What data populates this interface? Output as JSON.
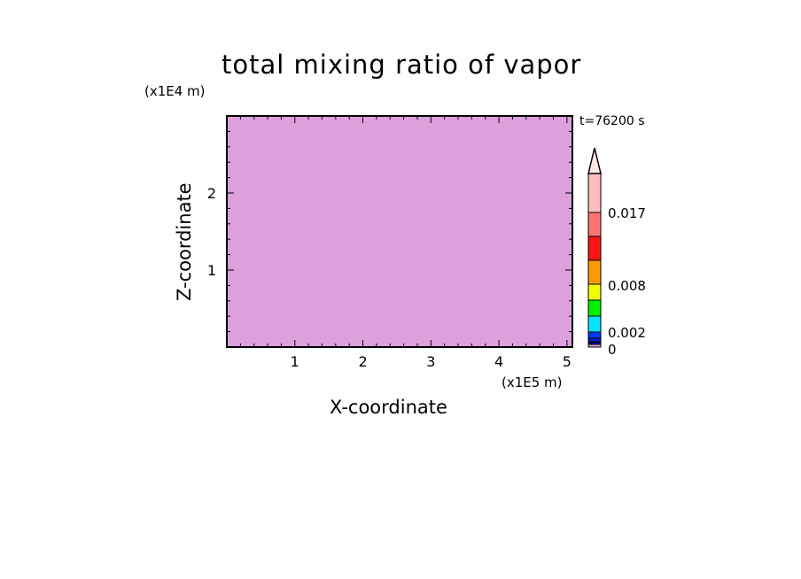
{
  "chart_data": {
    "type": "heatmap",
    "title": "total mixing ratio of vapor",
    "xlabel": "X-coordinate",
    "ylabel": "Z-coordinate",
    "x_unit": "(x1E5 m)",
    "y_unit": "(x1E4 m)",
    "time_label": "t=76200 s",
    "xlim": [
      0,
      5.08
    ],
    "ylim": [
      0,
      3
    ],
    "x_ticks": [
      "1",
      "2",
      "3",
      "4",
      "5"
    ],
    "y_ticks": [
      "1",
      "2"
    ],
    "colorbar": {
      "tick_labels": [
        "0",
        "0.002",
        "0.008",
        "0.017"
      ],
      "colors": [
        "#dda0dd",
        "#000a8c",
        "#0a1ed2",
        "#0037ff",
        "#00e6ff",
        "#00f000",
        "#f0ff00",
        "#ff9b00",
        "#ff1414",
        "#ff7373",
        "#ffbebe",
        "#ffe6e6"
      ],
      "extend": "max"
    }
  }
}
